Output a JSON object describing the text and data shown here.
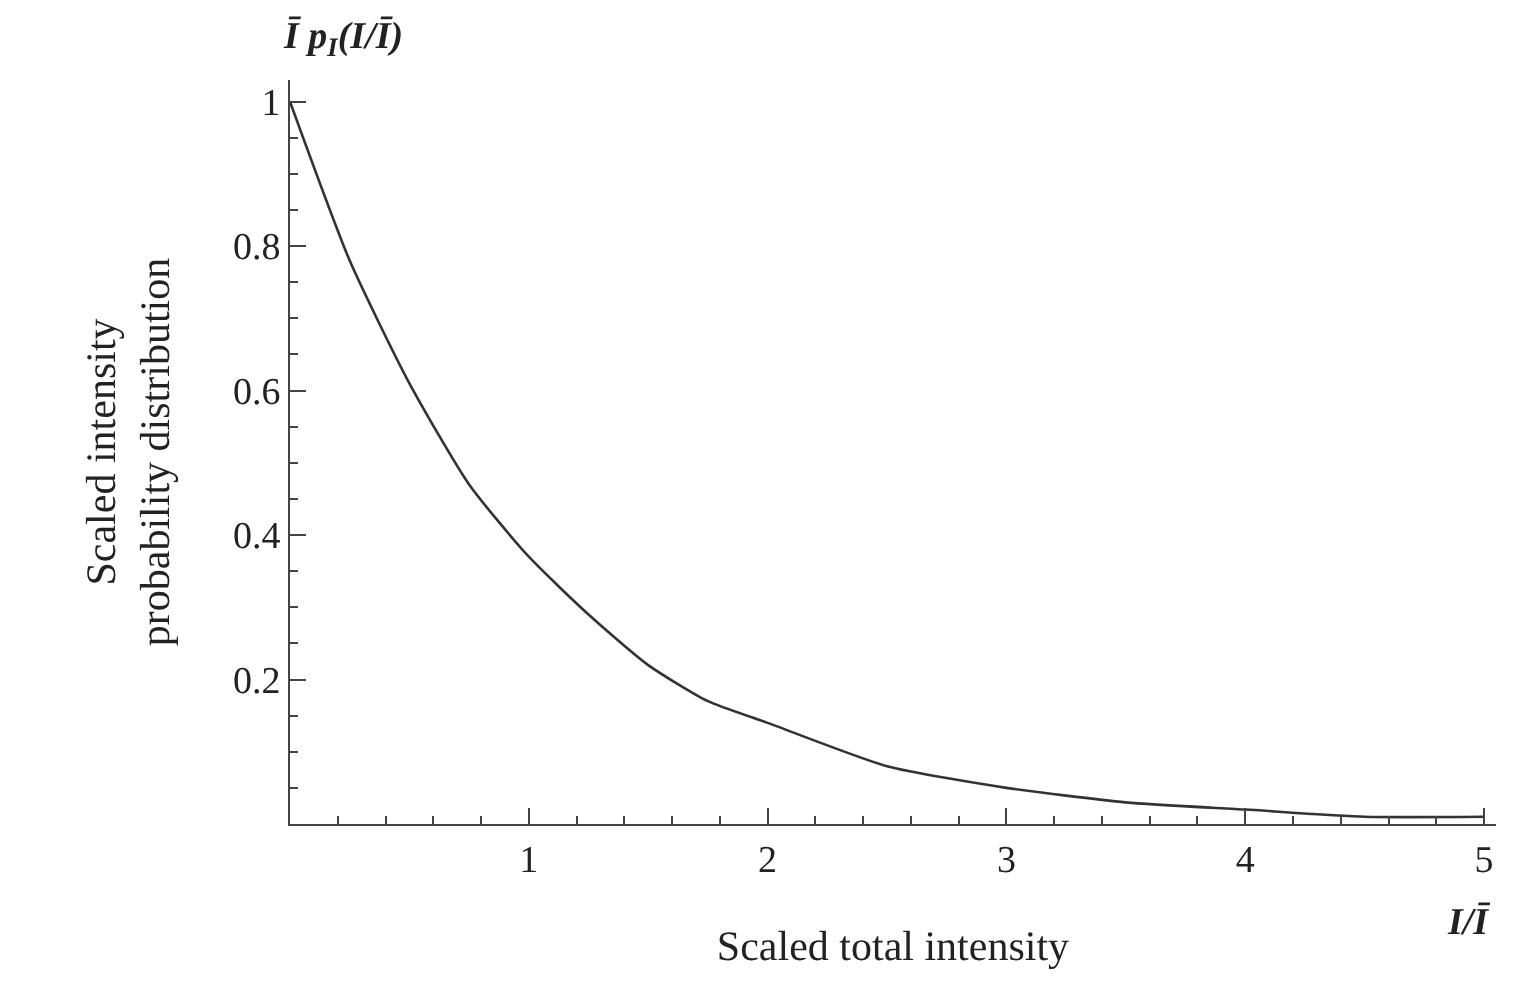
{
  "chart_data": {
    "type": "line",
    "xlabel": "Scaled total intensity",
    "ylabel": "Scaled intensity probability distribution",
    "annotations": [
      "Ī p$_{I}$(I/Ī)",
      "I/Ī"
    ],
    "x": [
      0,
      0.25,
      0.5,
      0.75,
      1,
      1.25,
      1.5,
      1.75,
      2,
      2.5,
      3,
      3.5,
      4,
      4.5,
      5
    ],
    "series": [
      {
        "color": "#333333",
        "values": [
          1,
          0.78,
          0.61,
          0.47,
          0.37,
          0.29,
          0.22,
          0.17,
          0.14,
          0.08,
          0.05,
          0.03,
          0.02,
          0.01,
          0.01
        ]
      }
    ],
    "xlim": [
      0,
      5.05
    ],
    "ylim": [
      0,
      1.03
    ],
    "xticks": [
      1,
      2,
      3,
      4,
      5
    ],
    "yticks": [
      0.2,
      0.4,
      0.6,
      0.8,
      1
    ],
    "marker": "none",
    "line_style": "solid"
  }
}
